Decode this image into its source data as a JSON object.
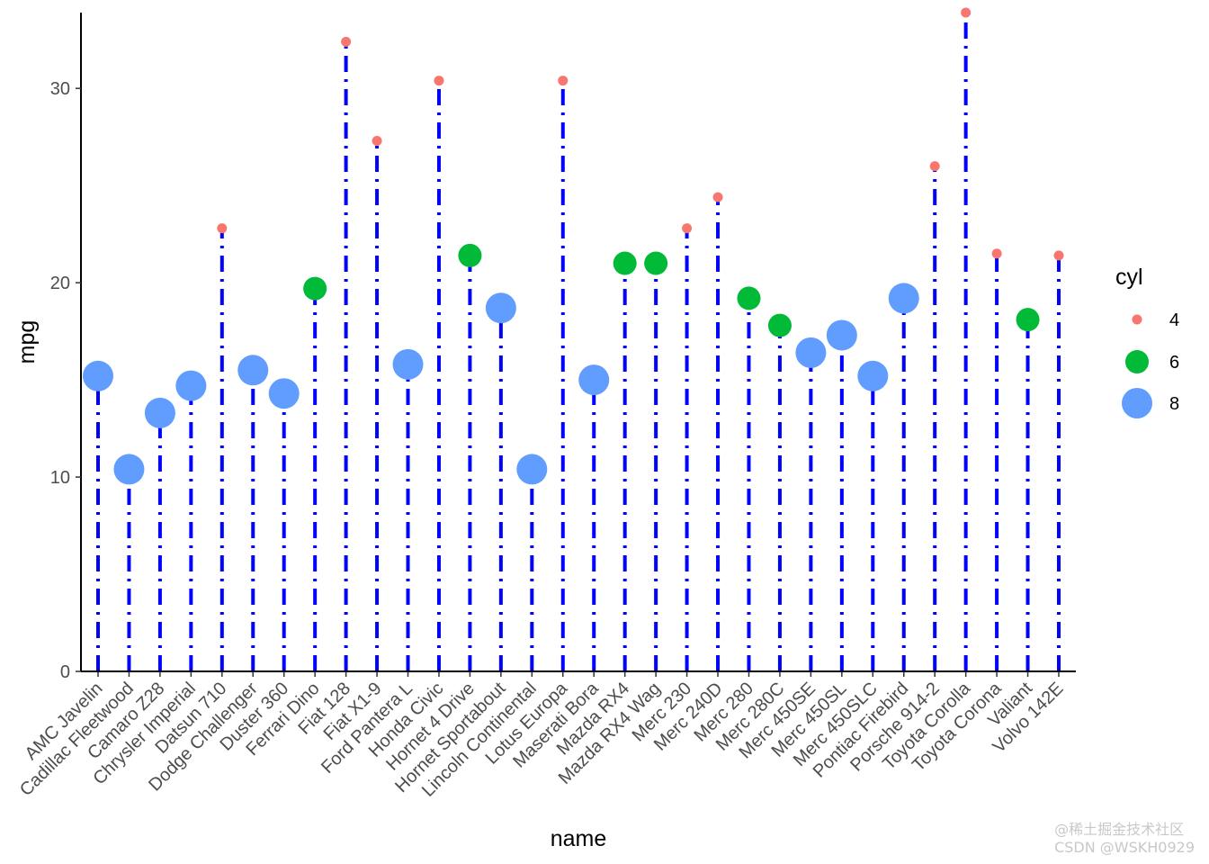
{
  "chart_data": {
    "type": "lollipop",
    "xlabel": "name",
    "ylabel": "mpg",
    "ylim": [
      0,
      33.9
    ],
    "yticks": [
      0,
      10,
      20,
      30
    ],
    "grid": false,
    "legend": {
      "title": "cyl",
      "placement": "right",
      "entries": [
        {
          "label": "4",
          "color": "#F8766D",
          "size": "small"
        },
        {
          "label": "6",
          "color": "#00BA38",
          "size": "medium"
        },
        {
          "label": "8",
          "color": "#619CFF",
          "size": "large"
        }
      ]
    },
    "stem_color": "#0000FF",
    "stem_style": "dot-dash",
    "points": [
      {
        "name": "AMC Javelin",
        "mpg": 15.2,
        "cyl": 8
      },
      {
        "name": "Cadillac Fleetwood",
        "mpg": 10.4,
        "cyl": 8
      },
      {
        "name": "Camaro Z28",
        "mpg": 13.3,
        "cyl": 8
      },
      {
        "name": "Chrysler Imperial",
        "mpg": 14.7,
        "cyl": 8
      },
      {
        "name": "Datsun 710",
        "mpg": 22.8,
        "cyl": 4
      },
      {
        "name": "Dodge Challenger",
        "mpg": 15.5,
        "cyl": 8
      },
      {
        "name": "Duster 360",
        "mpg": 14.3,
        "cyl": 8
      },
      {
        "name": "Ferrari Dino",
        "mpg": 19.7,
        "cyl": 6
      },
      {
        "name": "Fiat 128",
        "mpg": 32.4,
        "cyl": 4
      },
      {
        "name": "Fiat X1-9",
        "mpg": 27.3,
        "cyl": 4
      },
      {
        "name": "Ford Pantera L",
        "mpg": 15.8,
        "cyl": 8
      },
      {
        "name": "Honda Civic",
        "mpg": 30.4,
        "cyl": 4
      },
      {
        "name": "Hornet 4 Drive",
        "mpg": 21.4,
        "cyl": 6
      },
      {
        "name": "Hornet Sportabout",
        "mpg": 18.7,
        "cyl": 8
      },
      {
        "name": "Lincoln Continental",
        "mpg": 10.4,
        "cyl": 8
      },
      {
        "name": "Lotus Europa",
        "mpg": 30.4,
        "cyl": 4
      },
      {
        "name": "Maserati Bora",
        "mpg": 15.0,
        "cyl": 8
      },
      {
        "name": "Mazda RX4",
        "mpg": 21.0,
        "cyl": 6
      },
      {
        "name": "Mazda RX4 Wag",
        "mpg": 21.0,
        "cyl": 6
      },
      {
        "name": "Merc 230",
        "mpg": 22.8,
        "cyl": 4
      },
      {
        "name": "Merc 240D",
        "mpg": 24.4,
        "cyl": 4
      },
      {
        "name": "Merc 280",
        "mpg": 19.2,
        "cyl": 6
      },
      {
        "name": "Merc 280C",
        "mpg": 17.8,
        "cyl": 6
      },
      {
        "name": "Merc 450SE",
        "mpg": 16.4,
        "cyl": 8
      },
      {
        "name": "Merc 450SL",
        "mpg": 17.3,
        "cyl": 8
      },
      {
        "name": "Merc 450SLC",
        "mpg": 15.2,
        "cyl": 8
      },
      {
        "name": "Pontiac Firebird",
        "mpg": 19.2,
        "cyl": 8
      },
      {
        "name": "Porsche 914-2",
        "mpg": 26.0,
        "cyl": 4
      },
      {
        "name": "Toyota Corolla",
        "mpg": 33.9,
        "cyl": 4
      },
      {
        "name": "Toyota Corona",
        "mpg": 21.5,
        "cyl": 4
      },
      {
        "name": "Valiant",
        "mpg": 18.1,
        "cyl": 6
      },
      {
        "name": "Volvo 142E",
        "mpg": 21.4,
        "cyl": 4
      }
    ]
  },
  "watermark": {
    "line1": "@稀土掘金技术社区",
    "line2": "CSDN @WSKH0929"
  }
}
